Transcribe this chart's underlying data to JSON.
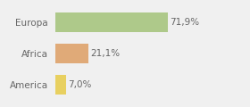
{
  "categories": [
    "Europa",
    "Africa",
    "America"
  ],
  "values": [
    71.9,
    21.1,
    7.0
  ],
  "labels": [
    "71,9%",
    "21,1%",
    "7,0%"
  ],
  "bar_colors": [
    "#aec98a",
    "#e0aa78",
    "#e8d060"
  ],
  "background_color": "#f0f0f0",
  "xlim": [
    0,
    105
  ],
  "label_fontsize": 7.5,
  "category_fontsize": 7.5,
  "bar_height": 0.62,
  "figsize": [
    2.8,
    1.2
  ],
  "dpi": 100
}
